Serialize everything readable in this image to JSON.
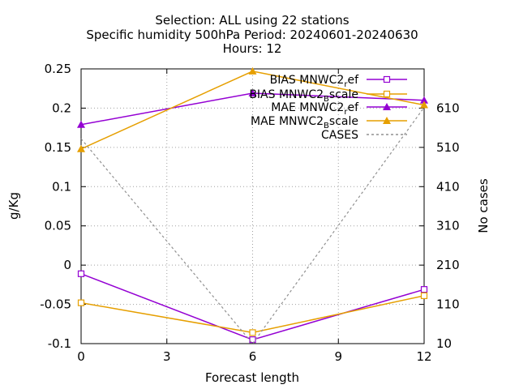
{
  "title_lines": [
    "Selection: ALL using    22 stations",
    "Specific humidity 500hPa   Period: 20240601-20240630",
    "Hours: 12"
  ],
  "chart_data": {
    "type": "line",
    "x": [
      0,
      6,
      12
    ],
    "xlabel": "Forecast length",
    "ylabel": "g/Kg",
    "y2label": "No cases",
    "xlim": [
      0,
      12
    ],
    "ylim": [
      -0.1,
      0.25
    ],
    "y2lim": [
      10,
      710
    ],
    "xticks": [
      "0",
      "3",
      "6",
      "9",
      "12"
    ],
    "xtick_values": [
      0,
      3,
      6,
      9,
      12
    ],
    "yticks": [
      "-0.1",
      "-0.05",
      "0",
      "0.05",
      "0.1",
      "0.15",
      "0.2",
      "0.25"
    ],
    "ytick_values": [
      -0.1,
      -0.05,
      0,
      0.05,
      0.1,
      0.15,
      0.2,
      0.25
    ],
    "y2ticks": [
      "10",
      "110",
      "210",
      "310",
      "410",
      "510",
      "610"
    ],
    "y2tick_values": [
      10,
      110,
      210,
      310,
      410,
      510,
      610
    ],
    "grid": true,
    "legend_position": "top-right",
    "series": [
      {
        "name": "BIAS MNWC2_ref",
        "legend_main": "BIAS MNWC2",
        "legend_sub": "r",
        "legend_tail": "ef",
        "values": [
          -0.011,
          -0.095,
          -0.031
        ],
        "axis": "y",
        "color": "#9400d3",
        "marker": "open-square",
        "dash": ""
      },
      {
        "name": "BIAS MNWC2_Bscale",
        "legend_main": "BIAS MNWC2",
        "legend_sub": "B",
        "legend_tail": "scale",
        "values": [
          -0.048,
          -0.086,
          -0.039
        ],
        "axis": "y",
        "color": "#e69f00",
        "marker": "open-square",
        "dash": ""
      },
      {
        "name": "MAE MNWC2_ref",
        "legend_main": "MAE MNWC2",
        "legend_sub": "r",
        "legend_tail": "ef",
        "values": [
          0.179,
          0.219,
          0.21
        ],
        "axis": "y",
        "color": "#9400d3",
        "marker": "filled-triangle",
        "dash": ""
      },
      {
        "name": "MAE MNWC2_Bscale",
        "legend_main": "MAE MNWC2",
        "legend_sub": "B",
        "legend_tail": "scale",
        "values": [
          0.148,
          0.247,
          0.204
        ],
        "axis": "y",
        "color": "#e69f00",
        "marker": "filled-triangle",
        "dash": ""
      },
      {
        "name": "CASES",
        "legend_main": "CASES",
        "legend_sub": "",
        "legend_tail": "",
        "values": [
          532,
          10,
          612
        ],
        "axis": "y2",
        "color": "#909090",
        "marker": "none",
        "dash": "3,3"
      }
    ]
  }
}
